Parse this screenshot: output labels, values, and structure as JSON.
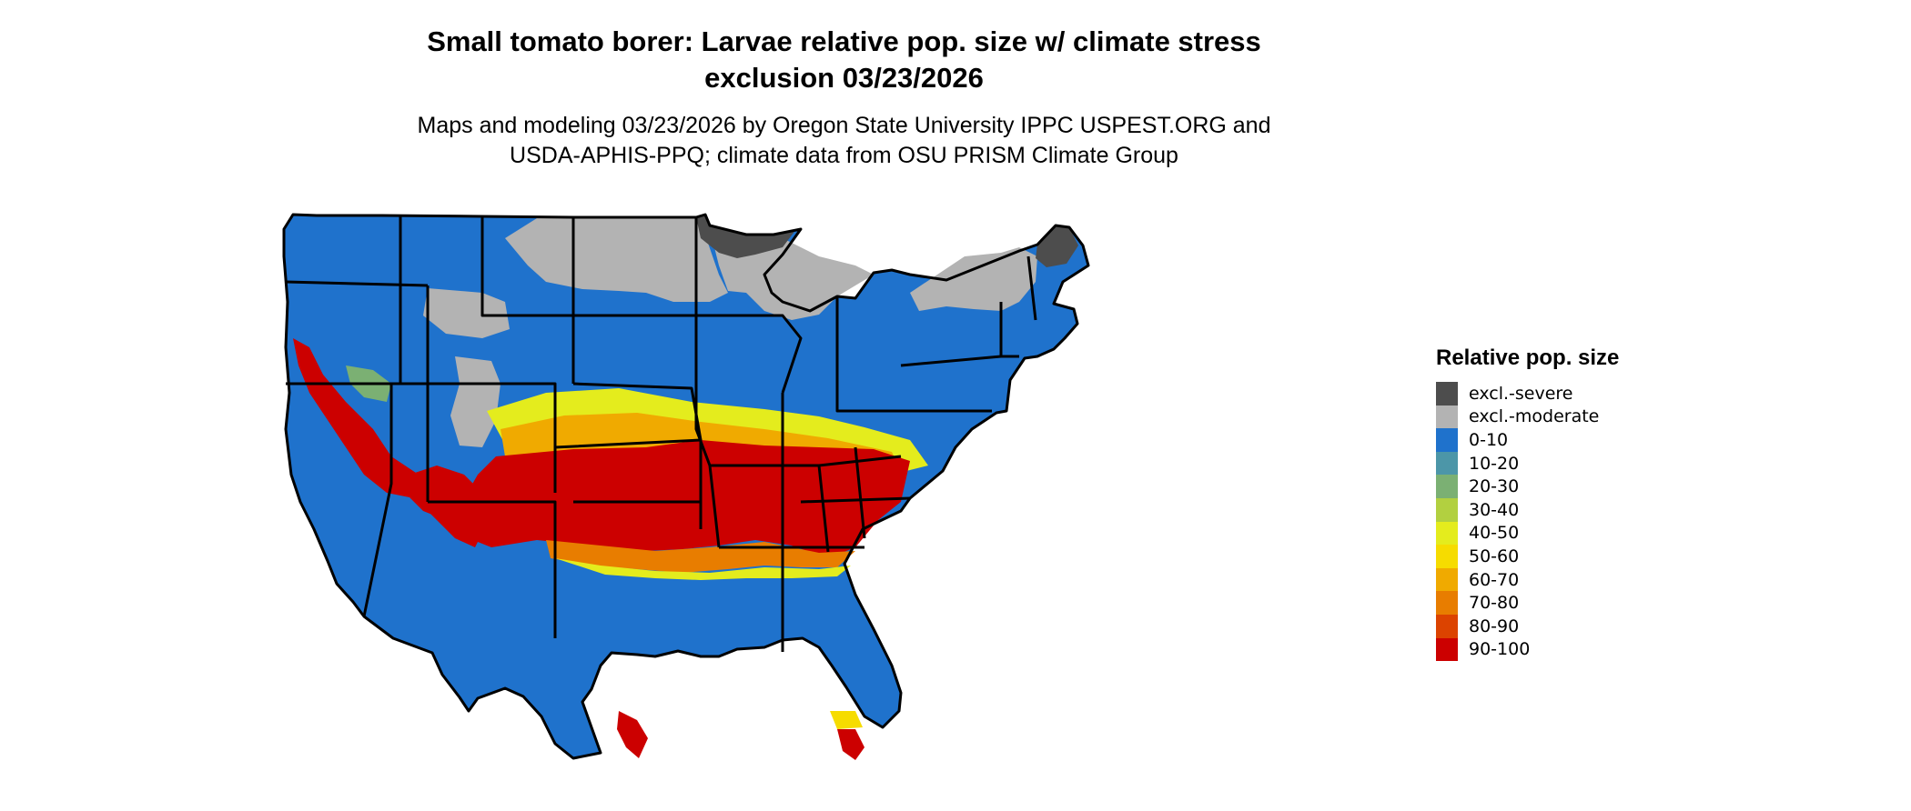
{
  "title_line1": "Small tomato borer: Larvae relative pop. size w/ climate stress",
  "title_line2": "exclusion 03/23/2026",
  "subtitle_line1": "Maps and modeling 03/23/2026 by Oregon State University IPPC USPEST.ORG and",
  "subtitle_line2": "USDA-APHIS-PPQ; climate data from OSU PRISM Climate Group",
  "legend": {
    "title": "Relative pop. size",
    "items": [
      {
        "label": "excl.-severe",
        "color": "#4d4d4d"
      },
      {
        "label": "excl.-moderate",
        "color": "#b3b3b3"
      },
      {
        "label": "0-10",
        "color": "#1f72cc"
      },
      {
        "label": "10-20",
        "color": "#4c96a8"
      },
      {
        "label": "20-30",
        "color": "#7bb073"
      },
      {
        "label": "30-40",
        "color": "#b2d040"
      },
      {
        "label": "40-50",
        "color": "#e4ec1d"
      },
      {
        "label": "50-60",
        "color": "#f6dc00"
      },
      {
        "label": "60-70",
        "color": "#f0aa00"
      },
      {
        "label": "70-80",
        "color": "#e87d00"
      },
      {
        "label": "80-90",
        "color": "#dc4300"
      },
      {
        "label": "90-100",
        "color": "#cc0000"
      }
    ]
  }
}
